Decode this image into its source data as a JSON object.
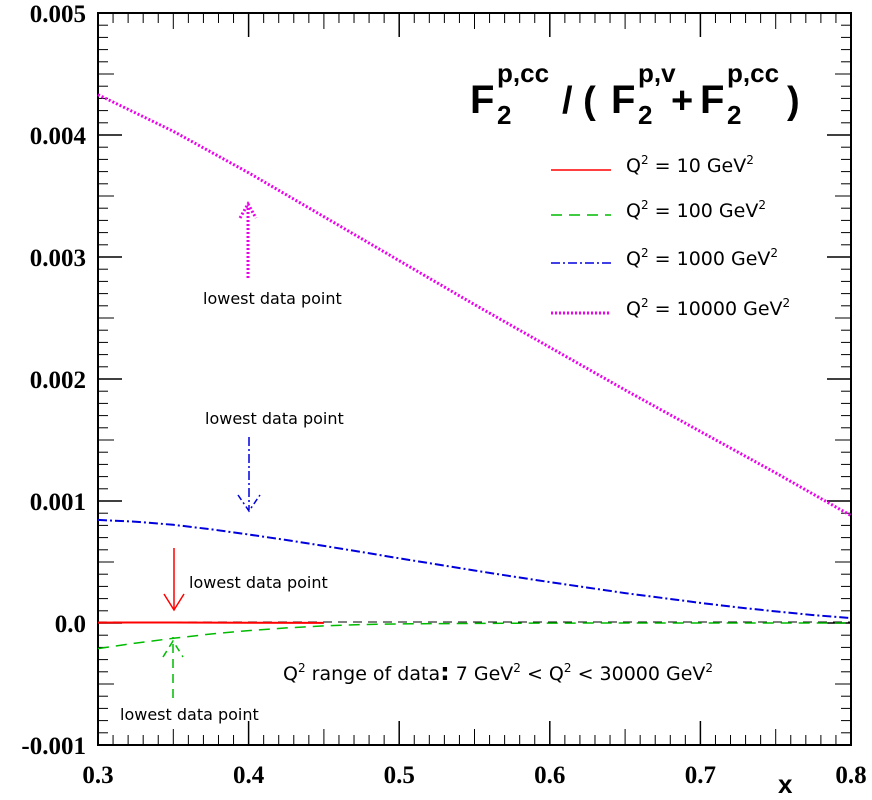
{
  "chart_data": {
    "type": "line",
    "title_parts": {
      "F": "F",
      "sub": "2",
      "sup_cc": "p,cc",
      "sup_v": "p,v",
      "slash": "/ (",
      "plus": "+",
      "close": ")"
    },
    "xlabel": "x",
    "ylabel": "",
    "xlim": [
      0.3,
      0.8
    ],
    "ylim": [
      -0.001,
      0.005
    ],
    "x_ticks": [
      {
        "value": 0.3,
        "label": "0.3"
      },
      {
        "value": 0.4,
        "label": "0.4"
      },
      {
        "value": 0.5,
        "label": "0.5"
      },
      {
        "value": 0.6,
        "label": "0.6"
      },
      {
        "value": 0.7,
        "label": "0.7"
      },
      {
        "value": 0.8,
        "label": "0.8"
      }
    ],
    "y_ticks": [
      {
        "value": -0.001,
        "label": "-0.001"
      },
      {
        "value": 0.0,
        "label": "0.0"
      },
      {
        "value": 0.001,
        "label": "0.001"
      },
      {
        "value": 0.002,
        "label": "0.002"
      },
      {
        "value": 0.003,
        "label": "0.003"
      },
      {
        "value": 0.004,
        "label": "0.004"
      },
      {
        "value": 0.005,
        "label": "0.005"
      }
    ],
    "legend_position": "top-right",
    "series": [
      {
        "name": "Q² = 10 GeV²",
        "label_prefix": "Q",
        "label_sup": "2",
        "label_mid": " = 10 GeV",
        "label_sup2": "2",
        "color": "#ff0000",
        "style": "solid",
        "x": [
          0.3,
          0.35,
          0.4,
          0.45
        ],
        "y": [
          3e-06,
          4e-06,
          2e-06,
          1e-06
        ]
      },
      {
        "name": "Q² = 100 GeV²",
        "label_prefix": "Q",
        "label_sup": "2",
        "label_mid": " = 100 GeV",
        "label_sup2": "2",
        "color": "#00bb00",
        "style": "dashed",
        "x": [
          0.3,
          0.325,
          0.35,
          0.375,
          0.4,
          0.425,
          0.45,
          0.475,
          0.5,
          0.55,
          0.6,
          0.65,
          0.7,
          0.75,
          0.8
        ],
        "y": [
          -0.00021,
          -0.000165,
          -0.000125,
          -9e-05,
          -6.2e-05,
          -4e-05,
          -2.4e-05,
          -1.3e-05,
          -7e-06,
          -3e-06,
          -1e-06,
          0.0,
          0.0,
          0.0,
          0.0
        ]
      },
      {
        "name": "Q² = 1000 GeV²",
        "label_prefix": "Q",
        "label_sup": "2",
        "label_mid": " = 1000 GeV",
        "label_sup2": "2",
        "color": "#0000dd",
        "style": "dashdot",
        "x": [
          0.3,
          0.325,
          0.35,
          0.375,
          0.4,
          0.425,
          0.45,
          0.475,
          0.5,
          0.525,
          0.55,
          0.575,
          0.6,
          0.625,
          0.65,
          0.675,
          0.7,
          0.725,
          0.75,
          0.775,
          0.8
        ],
        "y": [
          0.000845,
          0.00083,
          0.000805,
          0.000768,
          0.000725,
          0.00068,
          0.000632,
          0.000582,
          0.00053,
          0.00048,
          0.00043,
          0.000382,
          0.000335,
          0.00029,
          0.000245,
          0.000205,
          0.000165,
          0.000128,
          9.5e-05,
          6.5e-05,
          4e-05
        ]
      },
      {
        "name": "Q² = 10000 GeV²",
        "label_prefix": "Q",
        "label_sup": "2",
        "label_mid": " = 10000 GeV",
        "label_sup2": "2",
        "color": "#ee00ee",
        "style": "dotted",
        "x": [
          0.3,
          0.35,
          0.4,
          0.45,
          0.5,
          0.55,
          0.6,
          0.65,
          0.7,
          0.75,
          0.8
        ],
        "y": [
          0.00433,
          0.00403,
          0.00369,
          0.00333,
          0.00297,
          0.00261,
          0.00226,
          0.00191,
          0.00157,
          0.00123,
          0.00088
        ]
      }
    ],
    "annotations": [
      {
        "text": "lowest data point",
        "color_ref": 3
      },
      {
        "text": "lowest data point",
        "color_ref": 2
      },
      {
        "text": "lowest data point",
        "color_ref": 0
      },
      {
        "text": "lowest data point",
        "color_ref": 1
      }
    ],
    "range_note": {
      "q": "Q",
      "sup": "2",
      "a": " range of data",
      "colon": ":",
      "b": " 7 GeV",
      "sup2": "2",
      "lt1": " < Q",
      "sup3": "2",
      "lt2": " < 30000 GeV",
      "sup4": "2"
    }
  }
}
